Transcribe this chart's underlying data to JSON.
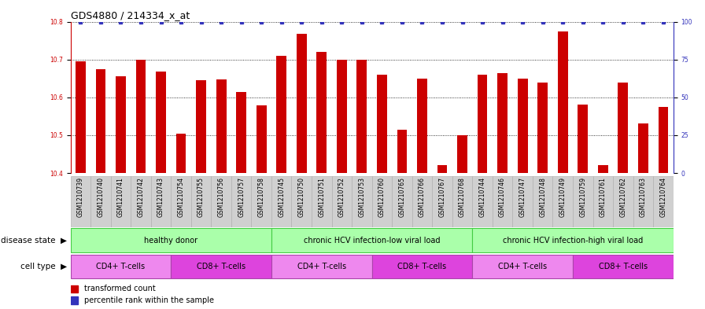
{
  "title": "GDS4880 / 214334_x_at",
  "samples": [
    "GSM1210739",
    "GSM1210740",
    "GSM1210741",
    "GSM1210742",
    "GSM1210743",
    "GSM1210754",
    "GSM1210755",
    "GSM1210756",
    "GSM1210757",
    "GSM1210758",
    "GSM1210745",
    "GSM1210750",
    "GSM1210751",
    "GSM1210752",
    "GSM1210753",
    "GSM1210760",
    "GSM1210765",
    "GSM1210766",
    "GSM1210767",
    "GSM1210768",
    "GSM1210744",
    "GSM1210746",
    "GSM1210747",
    "GSM1210748",
    "GSM1210749",
    "GSM1210759",
    "GSM1210761",
    "GSM1210762",
    "GSM1210763",
    "GSM1210764"
  ],
  "bar_values": [
    10.695,
    10.675,
    10.655,
    10.7,
    10.668,
    10.505,
    10.645,
    10.648,
    10.615,
    10.578,
    10.71,
    10.768,
    10.72,
    10.7,
    10.7,
    10.66,
    10.515,
    10.65,
    10.42,
    10.5,
    10.66,
    10.665,
    10.65,
    10.64,
    10.775,
    10.58,
    10.42,
    10.64,
    10.53,
    10.575
  ],
  "bar_color": "#CC0000",
  "percentile_color": "#3333BB",
  "ylim_left": [
    10.4,
    10.8
  ],
  "ylim_right": [
    0,
    100
  ],
  "yticks_left": [
    10.4,
    10.5,
    10.6,
    10.7,
    10.8
  ],
  "yticks_right": [
    0,
    25,
    50,
    75,
    100
  ],
  "disease_groups": [
    {
      "label": "healthy donor",
      "start": 0,
      "end": 9
    },
    {
      "label": "chronic HCV infection-low viral load",
      "start": 10,
      "end": 19
    },
    {
      "label": "chronic HCV infection-high viral load",
      "start": 20,
      "end": 29
    }
  ],
  "cell_type_groups": [
    {
      "label": "CD4+ T-cells",
      "start": 0,
      "end": 4
    },
    {
      "label": "CD8+ T-cells",
      "start": 5,
      "end": 9
    },
    {
      "label": "CD4+ T-cells",
      "start": 10,
      "end": 14
    },
    {
      "label": "CD8+ T-cells",
      "start": 15,
      "end": 19
    },
    {
      "label": "CD4+ T-cells",
      "start": 20,
      "end": 24
    },
    {
      "label": "CD8+ T-cells",
      "start": 25,
      "end": 29
    }
  ],
  "disease_state_label": "disease state",
  "cell_type_label": "cell type",
  "legend_bar_label": "transformed count",
  "legend_percentile_label": "percentile rank within the sample",
  "title_fontsize": 9,
  "tick_fontsize": 5.5,
  "label_fontsize": 7.5,
  "annot_fontsize": 7,
  "bar_width": 0.5,
  "background_color": "#FFFFFF",
  "plot_bg_color": "#FFFFFF",
  "xtick_bg_color": "#D0D0D0",
  "disease_bg_color": "#AAFFAA",
  "disease_border_color": "#44CC44",
  "cd4_color": "#EE88EE",
  "cd8_color": "#DD44DD",
  "arrow_color": "#888888"
}
